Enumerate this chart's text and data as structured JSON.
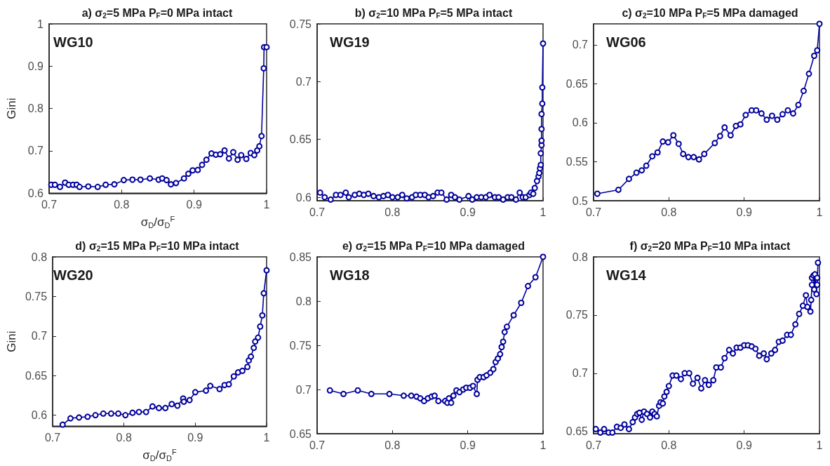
{
  "chart_data": [
    {
      "type": "line",
      "title": "a) σ$_{2}$=5 MPa P$_{F}$=0 MPa intact",
      "xlabel": "σ$_{D}$/σ$_{D}$$^{F}$",
      "ylabel": "Gini",
      "annotations": [
        "WG10"
      ],
      "xlim": [
        0.7,
        1
      ],
      "xticks": [
        0.7,
        0.8,
        0.9,
        1
      ],
      "ylim": [
        0.6,
        1
      ],
      "yticks": [
        0.6,
        0.7,
        0.8,
        0.9,
        1
      ],
      "marker": "circle",
      "series": [
        {
          "color": "#00009c",
          "x": [
            0.703,
            0.708,
            0.715,
            0.722,
            0.727,
            0.733,
            0.738,
            0.742,
            0.754,
            0.767,
            0.778,
            0.79,
            0.803,
            0.815,
            0.826,
            0.839,
            0.851,
            0.856,
            0.862,
            0.868,
            0.875,
            0.886,
            0.892,
            0.898,
            0.905,
            0.911,
            0.917,
            0.924,
            0.93,
            0.936,
            0.942,
            0.948,
            0.954,
            0.96,
            0.965,
            0.972,
            0.978,
            0.983,
            0.987,
            0.99,
            0.993,
            0.996,
            0.9965,
            1.0
          ],
          "values": [
            0.62,
            0.62,
            0.615,
            0.625,
            0.62,
            0.62,
            0.62,
            0.615,
            0.616,
            0.615,
            0.62,
            0.621,
            0.631,
            0.632,
            0.632,
            0.635,
            0.632,
            0.635,
            0.631,
            0.621,
            0.624,
            0.635,
            0.646,
            0.654,
            0.655,
            0.667,
            0.679,
            0.694,
            0.691,
            0.692,
            0.701,
            0.682,
            0.697,
            0.679,
            0.69,
            0.681,
            0.695,
            0.69,
            0.701,
            0.711,
            0.735,
            0.895,
            0.945,
            0.945
          ]
        }
      ]
    },
    {
      "type": "line",
      "title": "b) σ$_{2}$=10 MPa P$_{F}$=5 MPa intact",
      "annotations": [
        "WG19"
      ],
      "xlim": [
        0.7,
        1
      ],
      "xticks": [
        0.7,
        0.8,
        0.9,
        1
      ],
      "ylim": [
        0.597,
        0.75
      ],
      "yticks": [
        0.6,
        0.65,
        0.7,
        0.75
      ],
      "marker": "circle",
      "series": [
        {
          "color": "#00009c",
          "x": [
            0.704,
            0.71,
            0.718,
            0.725,
            0.731,
            0.738,
            0.742,
            0.75,
            0.756,
            0.762,
            0.768,
            0.775,
            0.782,
            0.788,
            0.794,
            0.8,
            0.807,
            0.813,
            0.819,
            0.826,
            0.831,
            0.837,
            0.843,
            0.848,
            0.854,
            0.86,
            0.865,
            0.872,
            0.878,
            0.883,
            0.889,
            0.901,
            0.906,
            0.912,
            0.918,
            0.924,
            0.929,
            0.936,
            0.941,
            0.947,
            0.953,
            0.958,
            0.964,
            0.969,
            0.973,
            0.977,
            0.982,
            0.984,
            0.987,
            0.989,
            0.992,
            0.994,
            0.995,
            0.996,
            0.997,
            0.997,
            0.998,
            0.998,
            0.998,
            0.998,
            0.999,
            0.999,
            1.0
          ],
          "values": [
            0.604,
            0.6,
            0.598,
            0.602,
            0.602,
            0.604,
            0.6,
            0.602,
            0.603,
            0.602,
            0.603,
            0.601,
            0.6,
            0.601,
            0.602,
            0.6,
            0.6,
            0.602,
            0.599,
            0.6,
            0.602,
            0.602,
            0.602,
            0.6,
            0.601,
            0.604,
            0.604,
            0.598,
            0.602,
            0.6,
            0.598,
            0.601,
            0.598,
            0.6,
            0.6,
            0.6,
            0.602,
            0.6,
            0.6,
            0.598,
            0.6,
            0.6,
            0.598,
            0.604,
            0.6,
            0.6,
            0.602,
            0.604,
            0.603,
            0.608,
            0.614,
            0.618,
            0.621,
            0.625,
            0.628,
            0.638,
            0.645,
            0.649,
            0.659,
            0.672,
            0.681,
            0.695,
            0.733
          ]
        }
      ]
    },
    {
      "type": "line",
      "title": "c) σ$_{2}$=10 MPa P$_{F}$=5 MPa damaged",
      "annotations": [
        "WG06"
      ],
      "xlim": [
        0.7,
        1
      ],
      "xticks": [
        0.7,
        0.8,
        0.9,
        1
      ],
      "ylim": [
        0.5,
        0.727
      ],
      "yticks": [
        0.5,
        0.55,
        0.6,
        0.65,
        0.7
      ],
      "marker": "circle",
      "series": [
        {
          "color": "#00009c",
          "x": [
            0.705,
            0.733,
            0.747,
            0.757,
            0.764,
            0.77,
            0.778,
            0.785,
            0.792,
            0.799,
            0.806,
            0.813,
            0.819,
            0.826,
            0.833,
            0.84,
            0.847,
            0.861,
            0.868,
            0.874,
            0.882,
            0.889,
            0.895,
            0.902,
            0.91,
            0.916,
            0.923,
            0.93,
            0.937,
            0.944,
            0.951,
            0.958,
            0.965,
            0.972,
            0.979,
            0.986,
            0.993,
            0.997,
            1.0
          ],
          "values": [
            0.509,
            0.514,
            0.528,
            0.536,
            0.539,
            0.545,
            0.557,
            0.562,
            0.576,
            0.575,
            0.584,
            0.573,
            0.56,
            0.556,
            0.556,
            0.553,
            0.56,
            0.574,
            0.583,
            0.594,
            0.584,
            0.596,
            0.598,
            0.61,
            0.616,
            0.616,
            0.612,
            0.604,
            0.609,
            0.604,
            0.611,
            0.616,
            0.612,
            0.623,
            0.641,
            0.663,
            0.686,
            0.693,
            0.727
          ]
        }
      ]
    },
    {
      "type": "line",
      "title": "d) σ$_{2}$=15 MPa P$_{F}$=10 MPa intact",
      "xlabel": "σ$_{D}$/σ$_{D}$$^{F}$",
      "ylabel": "Gini",
      "annotations": [
        "WG20"
      ],
      "xlim": [
        0.7,
        1
      ],
      "xticks": [
        0.7,
        0.8,
        0.9,
        1
      ],
      "ylim": [
        0.586,
        0.8
      ],
      "yticks": [
        0.6,
        0.65,
        0.7,
        0.75,
        0.8
      ],
      "marker": "circle",
      "series": [
        {
          "color": "#00009c",
          "x": [
            0.714,
            0.725,
            0.737,
            0.749,
            0.76,
            0.771,
            0.782,
            0.792,
            0.802,
            0.812,
            0.821,
            0.831,
            0.84,
            0.849,
            0.858,
            0.867,
            0.875,
            0.883,
            0.884,
            0.892,
            0.9,
            0.915,
            0.921,
            0.934,
            0.941,
            0.947,
            0.954,
            0.96,
            0.966,
            0.973,
            0.975,
            0.978,
            0.982,
            0.984,
            0.988,
            0.991,
            0.994,
            0.996,
            1.0
          ],
          "values": [
            0.588,
            0.596,
            0.597,
            0.598,
            0.6,
            0.602,
            0.602,
            0.602,
            0.6,
            0.603,
            0.604,
            0.604,
            0.611,
            0.609,
            0.609,
            0.614,
            0.612,
            0.621,
            0.617,
            0.619,
            0.629,
            0.631,
            0.637,
            0.633,
            0.638,
            0.639,
            0.649,
            0.654,
            0.656,
            0.661,
            0.669,
            0.674,
            0.685,
            0.693,
            0.698,
            0.712,
            0.726,
            0.754,
            0.783
          ]
        }
      ]
    },
    {
      "type": "line",
      "title": "e) σ$_{2}$=15 MPa P$_{F}$=10 MPa damaged",
      "annotations": [
        "WG18"
      ],
      "xlim": [
        0.7,
        1
      ],
      "xticks": [
        0.7,
        0.8,
        0.9,
        1
      ],
      "ylim": [
        0.65,
        0.85
      ],
      "yticks": [
        0.65,
        0.7,
        0.75,
        0.8,
        0.85
      ],
      "marker": "circle",
      "series": [
        {
          "color": "#00009c",
          "x": [
            0.717,
            0.735,
            0.754,
            0.772,
            0.796,
            0.815,
            0.825,
            0.832,
            0.837,
            0.842,
            0.847,
            0.852,
            0.856,
            0.861,
            0.87,
            0.873,
            0.875,
            0.878,
            0.881,
            0.885,
            0.889,
            0.894,
            0.898,
            0.903,
            0.907,
            0.912,
            0.913,
            0.916,
            0.921,
            0.925,
            0.93,
            0.934,
            0.937,
            0.94,
            0.943,
            0.945,
            0.947,
            0.949,
            0.952,
            0.961,
            0.971,
            0.98,
            0.99,
            1.0
          ],
          "values": [
            0.699,
            0.695,
            0.699,
            0.695,
            0.695,
            0.693,
            0.693,
            0.692,
            0.69,
            0.687,
            0.69,
            0.692,
            0.693,
            0.687,
            0.687,
            0.685,
            0.69,
            0.685,
            0.693,
            0.699,
            0.697,
            0.7,
            0.702,
            0.702,
            0.704,
            0.695,
            0.711,
            0.714,
            0.714,
            0.716,
            0.719,
            0.723,
            0.731,
            0.735,
            0.74,
            0.748,
            0.754,
            0.765,
            0.771,
            0.784,
            0.798,
            0.817,
            0.827,
            0.85
          ]
        }
      ]
    },
    {
      "type": "line",
      "title": "f) σ$_{2}$=20 MPa P$_{F}$=10 MPa intact",
      "annotations": [
        "WG14"
      ],
      "xlim": [
        0.7,
        1
      ],
      "xticks": [
        0.7,
        0.8,
        0.9,
        1
      ],
      "ylim": [
        0.648,
        0.8
      ],
      "yticks": [
        0.65,
        0.7,
        0.75,
        0.8
      ],
      "marker": "circle",
      "series": [
        {
          "color": "#00009c",
          "x": [
            0.703,
            0.709,
            0.714,
            0.72,
            0.725,
            0.731,
            0.736,
            0.741,
            0.747,
            0.752,
            0.755,
            0.758,
            0.761,
            0.764,
            0.767,
            0.771,
            0.775,
            0.778,
            0.781,
            0.784,
            0.787,
            0.789,
            0.792,
            0.794,
            0.797,
            0.8,
            0.805,
            0.81,
            0.816,
            0.821,
            0.827,
            0.832,
            0.838,
            0.843,
            0.848,
            0.853,
            0.859,
            0.863,
            0.869,
            0.874,
            0.88,
            0.885,
            0.89,
            0.895,
            0.9,
            0.905,
            0.91,
            0.915,
            0.92,
            0.926,
            0.93,
            0.936,
            0.941,
            0.946,
            0.951,
            0.957,
            0.962,
            0.968,
            0.973,
            0.978,
            0.982,
            0.984,
            0.988,
            0.989,
            0.99,
            0.99,
            0.992,
            0.993,
            0.994,
            0.996,
            0.997,
            0.997,
            0.998
          ],
          "values": [
            0.652,
            0.649,
            0.652,
            0.649,
            0.649,
            0.654,
            0.653,
            0.656,
            0.652,
            0.658,
            0.662,
            0.665,
            0.666,
            0.66,
            0.667,
            0.665,
            0.662,
            0.667,
            0.665,
            0.663,
            0.672,
            0.675,
            0.674,
            0.68,
            0.684,
            0.689,
            0.698,
            0.698,
            0.695,
            0.7,
            0.7,
            0.691,
            0.696,
            0.687,
            0.694,
            0.69,
            0.694,
            0.705,
            0.705,
            0.713,
            0.72,
            0.717,
            0.722,
            0.722,
            0.724,
            0.724,
            0.723,
            0.721,
            0.715,
            0.717,
            0.712,
            0.717,
            0.72,
            0.727,
            0.728,
            0.733,
            0.733,
            0.742,
            0.751,
            0.758,
            0.767,
            0.757,
            0.753,
            0.763,
            0.776,
            0.782,
            0.784,
            0.772,
            0.785,
            0.768,
            0.782,
            0.776,
            0.795
          ]
        }
      ]
    }
  ]
}
